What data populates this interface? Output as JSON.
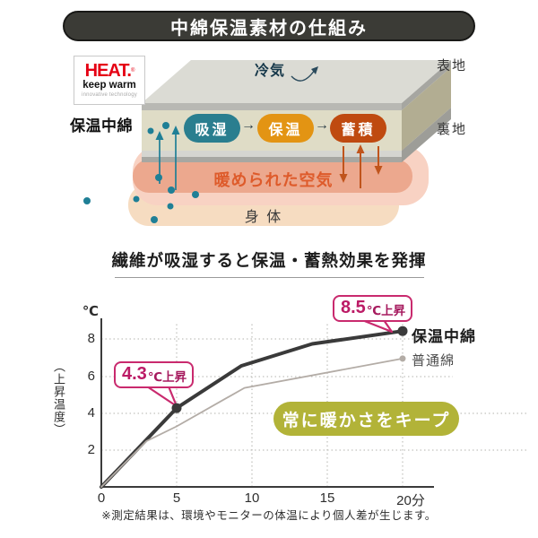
{
  "header": {
    "title": "中綿保温素材の仕組み"
  },
  "diagram": {
    "logo": {
      "brand": "HEAT.",
      "reg": "®",
      "tagline": "keep warm",
      "subline": "innovative technology"
    },
    "padding_label": "保温中綿",
    "cold_air": "冷気",
    "outer_fabric": "表地",
    "lining": "裏地",
    "flow_arrow": "→",
    "pills": [
      {
        "label": "吸湿",
        "color": "#2a7e8f"
      },
      {
        "label": "保温",
        "color": "#e39413"
      },
      {
        "label": "蓄積",
        "color": "#bf4a10"
      }
    ],
    "warm_air": "暖められた空気",
    "body": "身 体",
    "moisture_color": "#1f7f96",
    "heat_arrow_color": "#c0541c"
  },
  "subtitle": "繊維が吸湿すると保温・蓄熱効果を発揮",
  "chart_data": {
    "type": "line",
    "ylabel_unit": "℃",
    "ylabel_rotated": "（上昇温度）",
    "x_unit": "分",
    "x_ticks": [
      0,
      5,
      10,
      15,
      20
    ],
    "y_ticks": [
      2,
      4,
      6,
      8
    ],
    "xlim": [
      0,
      20
    ],
    "ylim": [
      0,
      9
    ],
    "grid": "dotted",
    "series": [
      {
        "name": "保温中綿",
        "color": "#3a3a3a",
        "stroke_width": 4,
        "marker_radius": 5.5,
        "x": [
          0,
          5,
          9.3,
          14,
          20
        ],
        "y": [
          0,
          4.3,
          6.6,
          7.8,
          8.5
        ],
        "marker_points": [
          [
            5,
            4.3
          ],
          [
            20,
            8.5
          ]
        ]
      },
      {
        "name": "普通綿",
        "color": "#b3aca6",
        "stroke_width": 1.8,
        "marker_radius": 3.5,
        "x": [
          0,
          3,
          5,
          9.5,
          20
        ],
        "y": [
          0,
          2.5,
          3.3,
          5.4,
          7.0
        ],
        "marker_points": [
          [
            20,
            7.0
          ]
        ]
      }
    ],
    "annotations": [
      {
        "text_value": "4.3",
        "text_suffix": "℃上昇",
        "at": {
          "x": 5,
          "y": 4.3
        }
      },
      {
        "text_value": "8.5",
        "text_suffix": "℃上昇",
        "at": {
          "x": 20,
          "y": 8.5
        }
      }
    ],
    "badge": "常に暖かさをキープ",
    "accent_magenta": "#c92a6e",
    "badge_color": "#b2b338"
  },
  "footnote": "※測定結果は、環境やモニターの体温により個人差が生じます。"
}
